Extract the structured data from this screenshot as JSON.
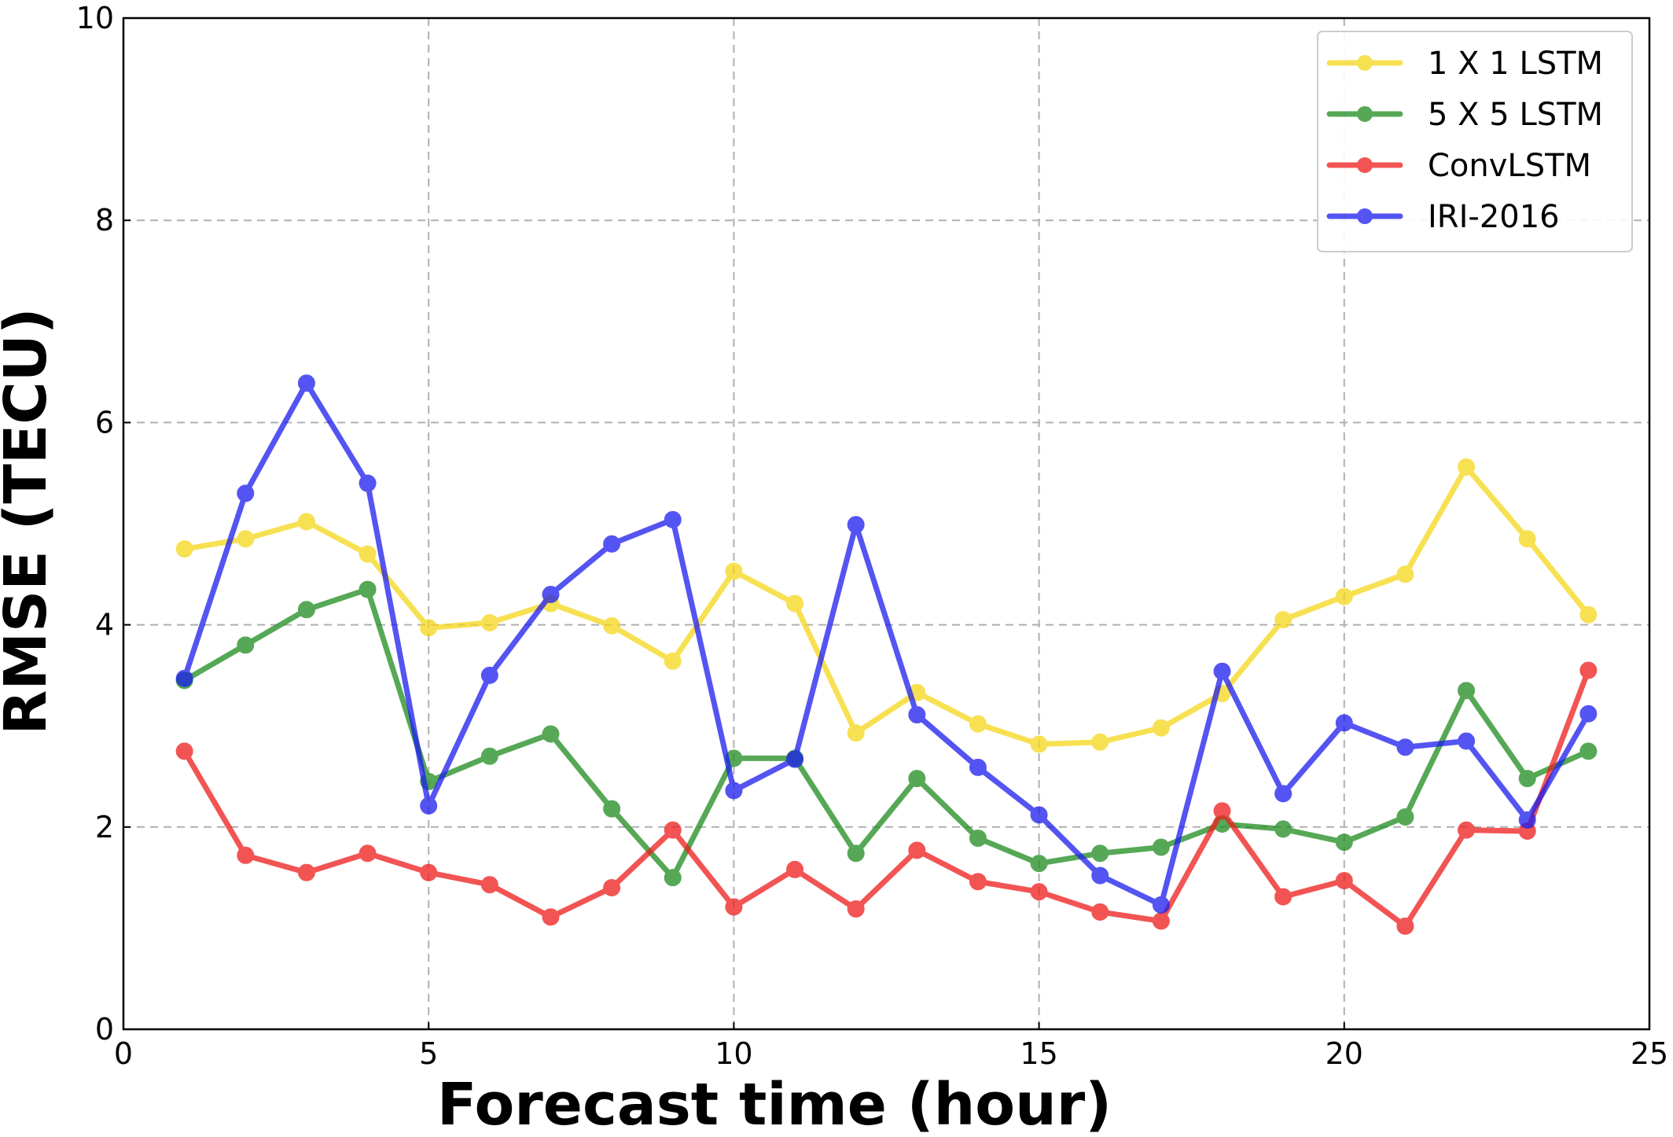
{
  "chart_data": {
    "type": "line",
    "title": "",
    "xlabel": "Forecast time (hour)",
    "ylabel": "RMSE (TECU)",
    "xlim": [
      0,
      25
    ],
    "ylim": [
      0,
      10
    ],
    "xticks": [
      0,
      5,
      10,
      15,
      20,
      25
    ],
    "yticks": [
      0,
      2,
      4,
      6,
      8,
      10
    ],
    "grid": true,
    "legend_position": "top-right",
    "x": [
      1,
      2,
      3,
      4,
      5,
      6,
      7,
      8,
      9,
      10,
      11,
      12,
      13,
      14,
      15,
      16,
      17,
      18,
      19,
      20,
      21,
      22,
      23,
      24
    ],
    "series": [
      {
        "name": "1 X 1 LSTM",
        "color": "#f5d71a",
        "values": [
          4.75,
          4.85,
          5.02,
          4.7,
          3.97,
          4.02,
          4.21,
          3.99,
          3.64,
          4.53,
          4.21,
          2.93,
          3.33,
          3.02,
          2.82,
          2.84,
          2.98,
          3.32,
          4.05,
          4.28,
          4.5,
          5.56,
          4.85,
          4.1
        ]
      },
      {
        "name": "5 X 5 LSTM",
        "color": "#1e8c1e",
        "values": [
          3.45,
          3.8,
          4.15,
          4.35,
          2.45,
          2.7,
          2.92,
          2.18,
          1.5,
          2.68,
          2.68,
          1.74,
          2.48,
          1.89,
          1.64,
          1.74,
          1.8,
          2.03,
          1.98,
          1.85,
          2.1,
          3.35,
          2.48,
          2.75
        ]
      },
      {
        "name": "ConvLSTM",
        "color": "#ee1c1c",
        "values": [
          2.75,
          1.72,
          1.55,
          1.74,
          1.55,
          1.43,
          1.11,
          1.4,
          1.97,
          1.21,
          1.58,
          1.19,
          1.77,
          1.46,
          1.36,
          1.16,
          1.07,
          2.16,
          1.31,
          1.47,
          1.02,
          1.97,
          1.96,
          3.55
        ]
      },
      {
        "name": "IRI-2016",
        "color": "#1c1cee",
        "values": [
          3.47,
          5.3,
          6.39,
          5.4,
          2.21,
          3.5,
          4.3,
          4.8,
          5.04,
          2.36,
          2.67,
          4.99,
          3.11,
          2.59,
          2.12,
          1.52,
          1.23,
          3.54,
          2.33,
          3.03,
          2.79,
          2.85,
          2.07,
          3.12
        ]
      }
    ]
  }
}
